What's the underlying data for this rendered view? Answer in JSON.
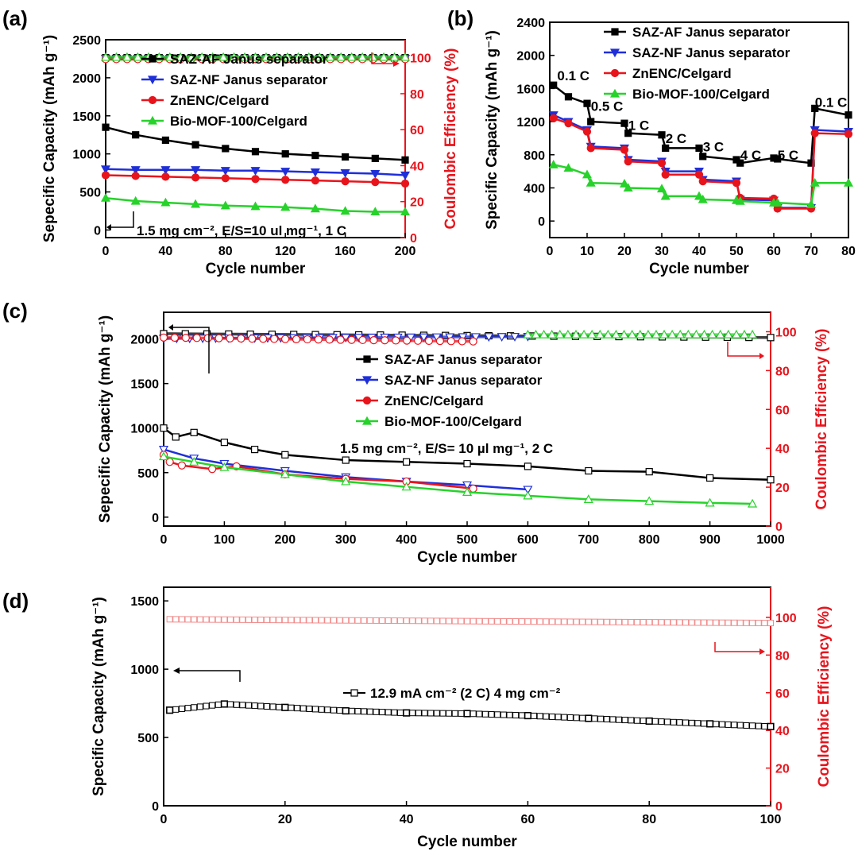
{
  "colors": {
    "axis": "#000000",
    "right_axis": "#e8141c",
    "saz_af": "#000000",
    "saz_nf": "#1f2fd8",
    "znenc": "#e8141c",
    "biomof": "#27d22b",
    "ce_pink": "#f08c8c"
  },
  "chart_data": [
    {
      "type": "line",
      "panel": "(a)",
      "xlabel": "Cycle number",
      "ylabel": "Sepecific Capacity (mAh g⁻¹)",
      "y2label": "Coulombic Efficiency (%)",
      "xlim": [
        0,
        200
      ],
      "ylim": [
        -100,
        2500
      ],
      "y2lim": [
        0,
        110
      ],
      "xticks": [
        0,
        40,
        80,
        120,
        160,
        200
      ],
      "yticks": [
        0,
        500,
        1000,
        1500,
        2000,
        2500
      ],
      "y2ticks": [
        0,
        20,
        40,
        60,
        80,
        100
      ],
      "legend": {
        "position": "top-center",
        "entries": [
          "SAZ-AF Janus separator",
          "SAZ-NF Janus separator",
          "ZnENC/Celgard",
          "Bio-MOF-100/Celgard"
        ]
      },
      "annotation": "1.5 mg cm⁻²,  E/S=10 ul mg⁻¹, 1 C",
      "series": [
        {
          "name": "SAZ-AF Janus separator",
          "x": [
            0,
            20,
            40,
            60,
            80,
            100,
            120,
            140,
            160,
            180,
            200
          ],
          "y": [
            1350,
            1250,
            1180,
            1120,
            1070,
            1030,
            1000,
            980,
            960,
            940,
            920
          ]
        },
        {
          "name": "SAZ-NF Janus separator",
          "x": [
            0,
            20,
            40,
            60,
            80,
            100,
            120,
            140,
            160,
            180,
            200
          ],
          "y": [
            800,
            790,
            790,
            790,
            780,
            780,
            770,
            760,
            750,
            740,
            720
          ]
        },
        {
          "name": "ZnENC/Celgard",
          "x": [
            0,
            20,
            40,
            60,
            80,
            100,
            120,
            140,
            160,
            180,
            200
          ],
          "y": [
            720,
            710,
            700,
            690,
            680,
            670,
            660,
            650,
            640,
            630,
            610
          ]
        },
        {
          "name": "Bio-MOF-100/Celgard",
          "x": [
            0,
            20,
            40,
            60,
            80,
            100,
            120,
            140,
            160,
            180,
            200
          ],
          "y": [
            420,
            380,
            360,
            340,
            320,
            310,
            300,
            280,
            250,
            240,
            240
          ]
        }
      ],
      "ce_series": [
        {
          "name": "SAZ-AF Janus separator CE",
          "x": [
            0,
            200
          ],
          "y": [
            100,
            100
          ]
        },
        {
          "name": "SAZ-NF Janus separator CE",
          "x": [
            0,
            200
          ],
          "y": [
            99.6,
            99.6
          ]
        },
        {
          "name": "ZnENC/Celgard CE",
          "x": [
            0,
            200
          ],
          "y": [
            99.2,
            99.2
          ]
        },
        {
          "name": "Bio-MOF-100/Celgard CE",
          "x": [
            0,
            200
          ],
          "y": [
            100.3,
            100.3
          ]
        }
      ]
    },
    {
      "type": "line",
      "panel": "(b)",
      "xlabel": "Cycle number",
      "ylabel": "Specific Capacity (mAh g⁻¹)",
      "xlim": [
        0,
        80
      ],
      "ylim": [
        -200,
        2400
      ],
      "xticks": [
        0,
        10,
        20,
        30,
        40,
        50,
        60,
        70,
        80
      ],
      "yticks": [
        0,
        400,
        800,
        1200,
        1600,
        2000,
        2400
      ],
      "legend": {
        "position": "top-right",
        "entries": [
          "SAZ-AF Janus separator",
          "SAZ-NF Janus separator",
          "ZnENC/Celgard",
          "Bio-MOF-100/Celgard"
        ]
      },
      "rate_labels": [
        {
          "text": "0.1 C",
          "x": 2,
          "y": 1700
        },
        {
          "text": "0.5 C",
          "x": 11,
          "y": 1330
        },
        {
          "text": "1 C",
          "x": 21,
          "y": 1100
        },
        {
          "text": "2 C",
          "x": 31,
          "y": 940
        },
        {
          "text": "3 C",
          "x": 41,
          "y": 840
        },
        {
          "text": "4 C",
          "x": 51,
          "y": 740
        },
        {
          "text": "5 C",
          "x": 61,
          "y": 740
        },
        {
          "text": "0.1 C",
          "x": 71,
          "y": 1380
        }
      ],
      "series": [
        {
          "name": "SAZ-AF Janus separator",
          "x": [
            1,
            5,
            10,
            11,
            20,
            21,
            30,
            31,
            40,
            41,
            50,
            51,
            60,
            61,
            70,
            71,
            80
          ],
          "y": [
            1640,
            1500,
            1420,
            1200,
            1180,
            1060,
            1040,
            880,
            880,
            780,
            740,
            700,
            760,
            750,
            700,
            1360,
            1280
          ]
        },
        {
          "name": "SAZ-NF Janus separator",
          "x": [
            1,
            5,
            10,
            11,
            20,
            21,
            30,
            31,
            40,
            41,
            50,
            51,
            60,
            61,
            70,
            71,
            80
          ],
          "y": [
            1280,
            1200,
            1100,
            900,
            880,
            740,
            720,
            600,
            600,
            500,
            480,
            260,
            250,
            160,
            160,
            1100,
            1080
          ]
        },
        {
          "name": "ZnENC/Celgard",
          "x": [
            1,
            5,
            10,
            11,
            20,
            21,
            30,
            31,
            40,
            41,
            50,
            51,
            60,
            61,
            70,
            71,
            80
          ],
          "y": [
            1240,
            1180,
            1080,
            880,
            860,
            720,
            700,
            560,
            560,
            480,
            460,
            280,
            270,
            150,
            150,
            1060,
            1050
          ]
        },
        {
          "name": "Bio-MOF-100/Celgard",
          "x": [
            1,
            5,
            10,
            11,
            20,
            21,
            30,
            31,
            40,
            41,
            50,
            51,
            60,
            61,
            70,
            71,
            80
          ],
          "y": [
            680,
            640,
            560,
            460,
            450,
            400,
            390,
            300,
            300,
            260,
            250,
            240,
            220,
            220,
            200,
            460,
            460
          ]
        }
      ]
    },
    {
      "type": "line",
      "panel": "(c)",
      "xlabel": "Cycle number",
      "ylabel": "Sepecific Capacity (mAh g⁻¹)",
      "y2label": "Coulombic Efficiency (%)",
      "xlim": [
        0,
        1000
      ],
      "ylim": [
        -100,
        2300
      ],
      "y2lim": [
        0,
        110
      ],
      "xticks": [
        0,
        100,
        200,
        300,
        400,
        500,
        600,
        700,
        800,
        900,
        1000
      ],
      "yticks": [
        0,
        500,
        1000,
        1500,
        2000
      ],
      "y2ticks": [
        0,
        20,
        40,
        60,
        80,
        100
      ],
      "legend": {
        "position": "center",
        "entries": [
          "SAZ-AF Janus separator",
          "SAZ-NF Janus separator",
          "ZnENC/Celgard",
          "Bio-MOF-100/Celgard"
        ]
      },
      "annotation": "1.5 mg cm⁻²,  E/S= 10 µl mg⁻¹,  2 C",
      "series": [
        {
          "name": "SAZ-AF Janus separator",
          "x": [
            0,
            20,
            50,
            100,
            150,
            200,
            300,
            400,
            500,
            600,
            700,
            800,
            900,
            1000
          ],
          "y": [
            1000,
            900,
            950,
            840,
            760,
            700,
            640,
            620,
            600,
            570,
            520,
            510,
            440,
            420
          ]
        },
        {
          "name": "SAZ-NF Janus separator",
          "x": [
            0,
            50,
            100,
            200,
            300,
            400,
            500,
            600
          ],
          "y": [
            760,
            660,
            600,
            520,
            450,
            400,
            360,
            310
          ]
        },
        {
          "name": "ZnENC/Celgard",
          "x": [
            0,
            10,
            30,
            80,
            120,
            200,
            300,
            400,
            510
          ],
          "y": [
            700,
            620,
            580,
            540,
            570,
            480,
            430,
            400,
            320
          ]
        },
        {
          "name": "Bio-MOF-100/Celgard",
          "x": [
            0,
            50,
            100,
            200,
            300,
            400,
            500,
            600,
            700,
            800,
            900,
            970
          ],
          "y": [
            680,
            620,
            560,
            480,
            400,
            340,
            280,
            240,
            200,
            180,
            160,
            150
          ]
        }
      ],
      "ce_series": [
        {
          "name": "SAZ-AF Janus separator CE",
          "x": [
            0,
            1000
          ],
          "y": [
            99,
            97
          ]
        },
        {
          "name": "SAZ-NF Janus separator CE",
          "x": [
            0,
            600
          ],
          "y": [
            96.5,
            97.5
          ]
        },
        {
          "name": "ZnENC/Celgard CE",
          "x": [
            0,
            510
          ],
          "y": [
            97,
            95
          ]
        },
        {
          "name": "Bio-MOF-100/Celgard CE",
          "x": [
            600,
            970
          ],
          "y": [
            98.5,
            98.5
          ]
        }
      ]
    },
    {
      "type": "scatter",
      "panel": "(d)",
      "xlabel": "Cycle number",
      "ylabel": "Specific Capacity (mAh g⁻¹)",
      "y2label": "Coulombic Efficiency (%)",
      "xlim": [
        0,
        100
      ],
      "ylim": [
        0,
        1600
      ],
      "y2lim": [
        0,
        116
      ],
      "xticks": [
        0,
        20,
        40,
        60,
        80,
        100
      ],
      "yticks": [
        0,
        500,
        1000,
        1500
      ],
      "y2ticks": [
        0,
        20,
        40,
        60,
        80,
        100
      ],
      "annotation": "12.9 mA cm⁻² (2 C) 4 mg cm⁻²",
      "series": [
        {
          "name": "Capacity",
          "x": [
            1,
            10,
            20,
            30,
            40,
            50,
            60,
            70,
            80,
            90,
            100
          ],
          "y": [
            700,
            745,
            720,
            695,
            680,
            675,
            660,
            640,
            620,
            600,
            580
          ]
        }
      ],
      "ce_series": [
        {
          "name": "Coulombic Efficiency",
          "x": [
            1,
            100
          ],
          "y": [
            99,
            97
          ]
        }
      ]
    }
  ]
}
